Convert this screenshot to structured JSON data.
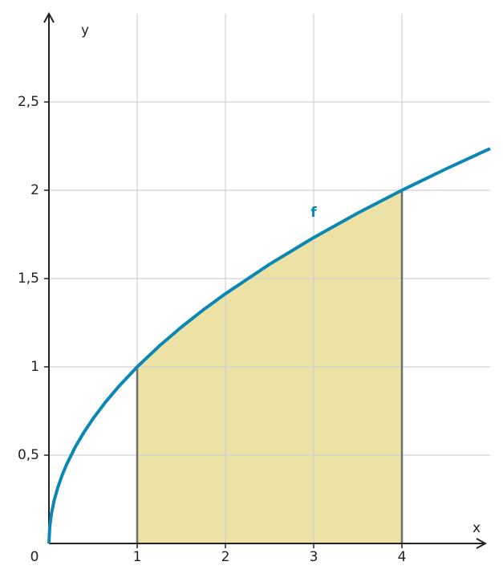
{
  "chart_data": {
    "type": "line",
    "x_label": "x",
    "y_label": "y",
    "x": [
      0,
      0.01,
      0.03,
      0.06,
      0.1,
      0.15,
      0.2,
      0.3,
      0.4,
      0.5,
      0.65,
      0.8,
      1,
      1.25,
      1.5,
      1.75,
      2,
      2.5,
      3,
      3.5,
      4,
      4.5,
      5
    ],
    "series": [
      {
        "name": "f",
        "color": "#0a87b5",
        "values": [
          0,
          0.1,
          0.173,
          0.245,
          0.316,
          0.387,
          0.447,
          0.548,
          0.632,
          0.707,
          0.806,
          0.894,
          1,
          1.118,
          1.225,
          1.323,
          1.414,
          1.581,
          1.732,
          1.871,
          2,
          2.121,
          2.236
        ]
      }
    ],
    "shade": {
      "x_from": 1,
      "x_to": 4,
      "color": "#ece2a6",
      "edge_color": "#6e6e6e"
    },
    "xlim": [
      0,
      5
    ],
    "ylim": [
      0,
      3
    ],
    "xticks": [
      0,
      1,
      2,
      3,
      4
    ],
    "yticks": [
      {
        "value": 0.5,
        "label": "0,5"
      },
      1,
      {
        "value": 1.5,
        "label": "1,5"
      },
      2,
      {
        "value": 2.5,
        "label": "2,5"
      }
    ],
    "grid": true
  }
}
